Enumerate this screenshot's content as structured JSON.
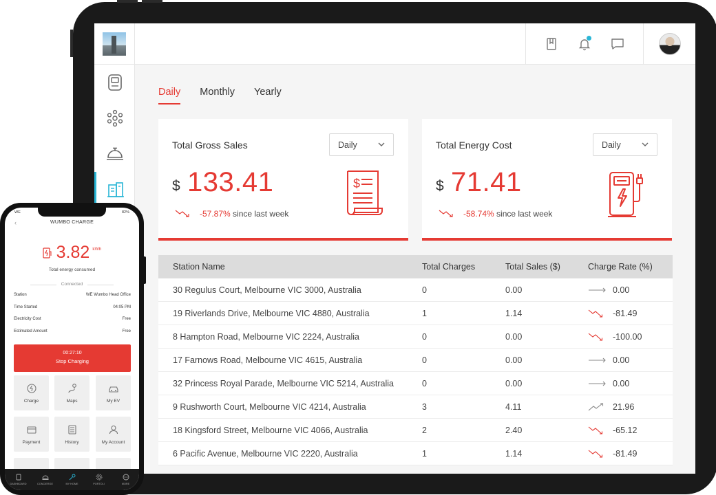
{
  "dashboard": {
    "tabs": [
      {
        "label": "Daily",
        "active": true
      },
      {
        "label": "Monthly",
        "active": false
      },
      {
        "label": "Yearly",
        "active": false
      }
    ],
    "cards": [
      {
        "title": "Total Gross Sales",
        "select": "Daily",
        "currency": "$",
        "value": "133.41",
        "change": "-57.87%",
        "change_suffix": "since last week",
        "icon": "invoice-icon"
      },
      {
        "title": "Total Energy Cost",
        "select": "Daily",
        "currency": "$",
        "value": "71.41",
        "change": "-58.74%",
        "change_suffix": "since last week",
        "icon": "charging-station-icon"
      }
    ],
    "table": {
      "headers": [
        "Station Name",
        "Total Charges",
        "Total Sales ($)",
        "Charge Rate (%)"
      ],
      "rows": [
        {
          "name": "30 Regulus Court, Melbourne VIC 3000, Australia",
          "charges": "0",
          "sales": "0.00",
          "rate": "0.00",
          "trend": "flat"
        },
        {
          "name": "19 Riverlands Drive, Melbourne VIC 4880, Australia",
          "charges": "1",
          "sales": "1.14",
          "rate": "-81.49",
          "trend": "down"
        },
        {
          "name": "8 Hampton Road, Melbourne VIC 2224, Australia",
          "charges": "0",
          "sales": "0.00",
          "rate": "-100.00",
          "trend": "down"
        },
        {
          "name": "17 Farnows Road, Melbourne VIC 4615, Australia",
          "charges": "0",
          "sales": "0.00",
          "rate": "0.00",
          "trend": "flat"
        },
        {
          "name": "32 Princess Royal Parade, Melbourne VIC 5214, Australia",
          "charges": "0",
          "sales": "0.00",
          "rate": "0.00",
          "trend": "flat"
        },
        {
          "name": "9 Rushworth Court, Melbourne VIC 4214, Australia",
          "charges": "3",
          "sales": "4.11",
          "rate": "21.96",
          "trend": "up"
        },
        {
          "name": "18 Kingsford Street, Melbourne VIC 4066, Australia",
          "charges": "2",
          "sales": "2.40",
          "rate": "-65.12",
          "trend": "down"
        },
        {
          "name": "6 Pacific Avenue, Melbourne VIC 2220, Australia",
          "charges": "1",
          "sales": "1.14",
          "rate": "-81.49",
          "trend": "down"
        }
      ]
    },
    "topbar_icons": [
      "book-icon",
      "bell-icon",
      "chat-icon"
    ],
    "sidebar_icons": [
      "device-icon",
      "network-icon",
      "service-bell-icon",
      "reports-icon"
    ]
  },
  "phone": {
    "status_time": "",
    "battery": "82%",
    "carrier": "WE",
    "title": "WUMBO CHARGE",
    "energy_value": "3.82",
    "energy_unit": "kWh",
    "energy_caption": "Total energy consumed",
    "connection": "Connected",
    "info": [
      {
        "label": "Station",
        "value": "WE Wumbo Head Office"
      },
      {
        "label": "Time Started",
        "value": "04:05 PM"
      },
      {
        "label": "Electricity Cost",
        "value": "Free"
      },
      {
        "label": "Estimated Amount",
        "value": "Free"
      }
    ],
    "stop": {
      "timer": "00:27:10",
      "label": "Stop Charging"
    },
    "tiles": [
      {
        "label": "Charge",
        "icon": "charge-icon"
      },
      {
        "label": "Maps",
        "icon": "maps-icon"
      },
      {
        "label": "My EV",
        "icon": "car-icon"
      },
      {
        "label": "Payment",
        "icon": "card-icon"
      },
      {
        "label": "History",
        "icon": "history-icon"
      },
      {
        "label": "My Account",
        "icon": "account-icon"
      }
    ],
    "nav": [
      {
        "label": "DASHBOARD",
        "icon": "dashboard-icon"
      },
      {
        "label": "CONCIERGE",
        "icon": "concierge-icon"
      },
      {
        "label": "MY HOME",
        "icon": "key-icon"
      },
      {
        "label": "PORTOLI",
        "icon": "gear-icon"
      },
      {
        "label": "MORE",
        "icon": "more-icon"
      }
    ]
  },
  "colors": {
    "accent": "#e53a33",
    "sidebar_active": "#29b6d6",
    "table_header": "#dcdcdc"
  }
}
